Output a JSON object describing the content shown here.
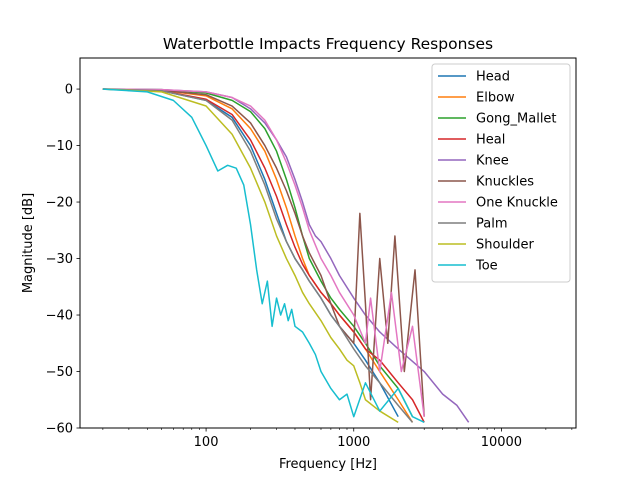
{
  "chart_data": {
    "type": "line",
    "title": "Waterbottle Impacts Frequency Responses",
    "xlabel": "Frequency [Hz]",
    "ylabel": "Magnitude [dB]",
    "xscale": "log",
    "xlim": [
      14,
      32000
    ],
    "ylim": [
      -60,
      5.5
    ],
    "xticks": [
      100,
      1000,
      10000
    ],
    "xtick_labels": [
      "100",
      "1000",
      "10000"
    ],
    "yticks": [
      0,
      -10,
      -20,
      -30,
      -40,
      -50,
      -60
    ],
    "ytick_labels": [
      "0",
      "−10",
      "−20",
      "−30",
      "−40",
      "−50",
      "−60"
    ],
    "grid": false,
    "legend_position": "top-right",
    "series": [
      {
        "name": "Head",
        "color": "#1f77b4",
        "x": [
          20,
          50,
          100,
          150,
          200,
          250,
          300,
          350,
          400,
          450,
          500,
          600,
          700,
          800,
          1000,
          1200,
          1500,
          2000
        ],
        "y": [
          0,
          -0.3,
          -2,
          -5,
          -10,
          -16,
          -22,
          -27,
          -30,
          -32,
          -34,
          -37,
          -40,
          -42,
          -45,
          -48,
          -52,
          -58
        ]
      },
      {
        "name": "Elbow",
        "color": "#ff7f0e",
        "x": [
          20,
          50,
          100,
          150,
          200,
          250,
          300,
          350,
          400,
          450,
          500,
          600,
          700,
          800,
          1000,
          1200,
          1500,
          2000,
          2500
        ],
        "y": [
          0,
          -0.2,
          -1.2,
          -3.5,
          -7,
          -11,
          -16,
          -21,
          -26,
          -30,
          -33,
          -36,
          -38,
          -40,
          -43,
          -46,
          -50,
          -55,
          -59
        ]
      },
      {
        "name": "Gong_Mallet",
        "color": "#2ca02c",
        "x": [
          20,
          50,
          100,
          150,
          200,
          250,
          300,
          350,
          400,
          450,
          500,
          600,
          700,
          800,
          1000,
          1200,
          1500,
          2000,
          2500
        ],
        "y": [
          0,
          -0.1,
          -0.7,
          -2,
          -4,
          -7,
          -11,
          -16,
          -21,
          -26,
          -30,
          -34,
          -37,
          -39,
          -42,
          -45,
          -49,
          -53,
          -58
        ]
      },
      {
        "name": "Heal",
        "color": "#d62728",
        "x": [
          20,
          50,
          100,
          150,
          200,
          250,
          300,
          350,
          400,
          450,
          500,
          600,
          700,
          800,
          1000,
          1200,
          1500,
          2000,
          2500,
          3000
        ],
        "y": [
          0,
          -0.3,
          -1.8,
          -4.5,
          -9,
          -14,
          -19,
          -24,
          -28,
          -31,
          -33,
          -36,
          -38,
          -40,
          -43,
          -46,
          -48,
          -52,
          -55,
          -59
        ]
      },
      {
        "name": "Knee",
        "color": "#9467bd",
        "x": [
          20,
          50,
          100,
          150,
          200,
          250,
          300,
          350,
          400,
          450,
          500,
          550,
          600,
          700,
          800,
          1000,
          1200,
          1500,
          2000,
          3000,
          4000,
          5000,
          6000
        ],
        "y": [
          0,
          -0.1,
          -0.5,
          -1.5,
          -3.5,
          -6,
          -9,
          -12,
          -16,
          -20,
          -24,
          -26,
          -27,
          -30,
          -33,
          -37,
          -40,
          -43,
          -46,
          -50,
          -54,
          -56,
          -59
        ]
      },
      {
        "name": "Knuckles",
        "color": "#8c564b",
        "x": [
          20,
          50,
          100,
          150,
          200,
          250,
          300,
          350,
          400,
          450,
          500,
          600,
          700,
          800,
          1000,
          1100,
          1200,
          1300,
          1500,
          1700,
          1900,
          2200,
          2600,
          3000
        ],
        "y": [
          0,
          -0.2,
          -1,
          -3,
          -6,
          -10,
          -14,
          -18,
          -22,
          -26,
          -29,
          -33,
          -38,
          -42,
          -45,
          -22,
          -38,
          -55,
          -30,
          -45,
          -26,
          -50,
          -32,
          -58
        ]
      },
      {
        "name": "One Knuckle",
        "color": "#e377c2",
        "x": [
          20,
          50,
          100,
          150,
          200,
          250,
          300,
          350,
          400,
          450,
          500,
          600,
          700,
          800,
          1000,
          1200,
          1300,
          1500,
          1800,
          2100,
          2500,
          3000
        ],
        "y": [
          0,
          -0.1,
          -0.5,
          -1.5,
          -3,
          -5.5,
          -9,
          -13,
          -17,
          -21,
          -25,
          -30,
          -33,
          -36,
          -40,
          -45,
          -37,
          -50,
          -36,
          -50,
          -42,
          -58
        ]
      },
      {
        "name": "Palm",
        "color": "#7f7f7f",
        "x": [
          20,
          50,
          100,
          150,
          200,
          250,
          300,
          350,
          400,
          450,
          500,
          600,
          700,
          800,
          1000,
          1200,
          1500,
          2000,
          2500
        ],
        "y": [
          0,
          -0.3,
          -2,
          -5.5,
          -11,
          -17,
          -23,
          -27,
          -30,
          -32,
          -34,
          -37,
          -40,
          -42,
          -46,
          -49,
          -52,
          -56,
          -59
        ]
      },
      {
        "name": "Shoulder",
        "color": "#bcbd22",
        "x": [
          20,
          50,
          100,
          150,
          200,
          250,
          300,
          350,
          400,
          450,
          500,
          600,
          700,
          800,
          900,
          1000,
          1100,
          1200,
          1500,
          2000
        ],
        "y": [
          0,
          -0.5,
          -3,
          -8,
          -14,
          -20,
          -26,
          -30,
          -33,
          -36,
          -38,
          -41,
          -44,
          -46,
          -48,
          -49,
          -52,
          -55,
          -57,
          -59
        ]
      },
      {
        "name": "Toe",
        "color": "#17becf",
        "x": [
          20,
          40,
          60,
          80,
          100,
          120,
          140,
          160,
          180,
          200,
          220,
          240,
          260,
          280,
          300,
          320,
          340,
          360,
          380,
          400,
          450,
          500,
          550,
          600,
          700,
          800,
          900,
          1000,
          1200,
          1500,
          2000,
          2500,
          3000
        ],
        "y": [
          0,
          -0.5,
          -2,
          -5,
          -10,
          -14.5,
          -13.5,
          -14,
          -17,
          -24,
          -32,
          -38,
          -34,
          -42,
          -37,
          -40,
          -38,
          -41,
          -39,
          -42,
          -43,
          -45,
          -47,
          -50,
          -53,
          -55,
          -54,
          -58,
          -52,
          -57,
          -53,
          -58,
          -59
        ]
      }
    ]
  }
}
